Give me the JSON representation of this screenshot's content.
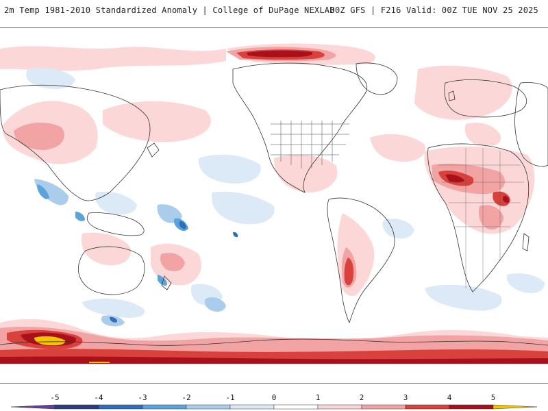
{
  "header": {
    "title_left": "2m Temp 1981-2010 Standardized Anomaly | College of DuPage NEXLAB",
    "title_right": "00Z GFS | F216 Valid: 00Z TUE NOV 25 2025"
  },
  "legend": {
    "ticks": [
      "-5",
      "-4",
      "-3",
      "-2",
      "-1",
      "0",
      "1",
      "2",
      "3",
      "4",
      "5"
    ],
    "colors": {
      "below_min": "#6a3d9a",
      "neg5_neg4": "#2b3f7c",
      "neg4_neg3": "#2f6fb5",
      "neg3_neg2": "#5aa3dc",
      "neg2_neg1": "#a9cdeb",
      "neg1_0": "#dce9f6",
      "0_1": "#ffffff",
      "1_2": "#fbd5d5",
      "2_3": "#f2a3a3",
      "3_4": "#d9413c",
      "4_5": "#a8101c",
      "above_max": "#f5c400"
    }
  },
  "map": {
    "colors": {
      "land_outline": "#333333",
      "anomaly_warm_light": "#fbd5d5",
      "anomaly_warm_mid": "#f2a3a3",
      "anomaly_warm_strong": "#d9413c",
      "anomaly_warm_extreme": "#a8101c",
      "anomaly_max": "#f5c400",
      "anomaly_cold_light": "#dce9f6",
      "anomaly_cold_mid": "#a9cdeb",
      "anomaly_cold_strong": "#5aa3dc",
      "anomaly_cold_extreme": "#2f6fb5"
    }
  }
}
